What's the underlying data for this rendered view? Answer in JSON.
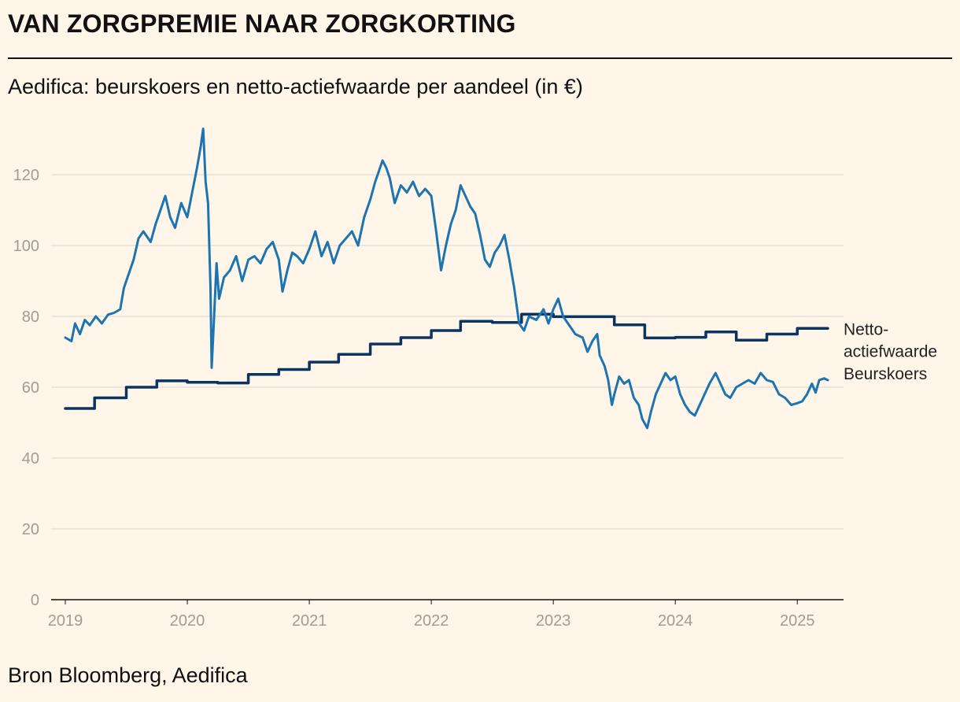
{
  "header": {
    "title": "VAN ZORGPREMIE NAAR ZORGKORTING",
    "subtitle": "Aedifica: beurskoers en netto-actiefwaarde per aandeel (in €)"
  },
  "footer": {
    "source": "Bron Bloomberg, Aedifica"
  },
  "colors": {
    "background": "#fff6e9",
    "nav_line": "#0b3461",
    "price_line": "#1c74b0",
    "grid": "#e3ddd2"
  },
  "chart_data": {
    "type": "line",
    "title": "Aedifica: beurskoers en netto-actiefwaarde per aandeel (in €)",
    "xlabel": "",
    "ylabel": "",
    "xlim": [
      2019.0,
      2025.25
    ],
    "ylim": [
      0,
      130
    ],
    "yticks": [
      0,
      20,
      40,
      60,
      80,
      100,
      120
    ],
    "xticks": [
      {
        "value": 2019,
        "label": "2019"
      },
      {
        "value": 2020,
        "label": "2020"
      },
      {
        "value": 2021,
        "label": "2021"
      },
      {
        "value": 2022,
        "label": "2022"
      },
      {
        "value": 2023,
        "label": "2023"
      },
      {
        "value": 2024,
        "label": "2024"
      },
      {
        "value": 2025,
        "label": "2025"
      }
    ],
    "grid": true,
    "series": [
      {
        "name": "Netto-actiefwaarde",
        "label_lines": [
          "Netto-",
          "actiefwaarde"
        ],
        "style": "step",
        "points": [
          [
            2019.0,
            54.0
          ],
          [
            2019.24,
            54.0
          ],
          [
            2019.24,
            57.0
          ],
          [
            2019.5,
            57.0
          ],
          [
            2019.5,
            60.0
          ],
          [
            2019.75,
            60.0
          ],
          [
            2019.75,
            61.8
          ],
          [
            2020.0,
            61.8
          ],
          [
            2020.0,
            61.4
          ],
          [
            2020.25,
            61.4
          ],
          [
            2020.25,
            61.2
          ],
          [
            2020.5,
            61.2
          ],
          [
            2020.5,
            63.6
          ],
          [
            2020.75,
            63.6
          ],
          [
            2020.75,
            65.0
          ],
          [
            2021.0,
            65.0
          ],
          [
            2021.0,
            67.1
          ],
          [
            2021.24,
            67.1
          ],
          [
            2021.24,
            69.3
          ],
          [
            2021.5,
            69.3
          ],
          [
            2021.5,
            72.2
          ],
          [
            2021.75,
            72.2
          ],
          [
            2021.75,
            74.0
          ],
          [
            2022.0,
            74.0
          ],
          [
            2022.0,
            76.0
          ],
          [
            2022.24,
            76.0
          ],
          [
            2022.24,
            78.6
          ],
          [
            2022.5,
            78.6
          ],
          [
            2022.5,
            78.3
          ],
          [
            2022.74,
            78.3
          ],
          [
            2022.74,
            80.6
          ],
          [
            2023.0,
            80.6
          ],
          [
            2023.0,
            79.9
          ],
          [
            2023.5,
            79.9
          ],
          [
            2023.5,
            77.6
          ],
          [
            2023.75,
            77.6
          ],
          [
            2023.75,
            73.9
          ],
          [
            2024.0,
            73.9
          ],
          [
            2024.0,
            74.1
          ],
          [
            2024.25,
            74.1
          ],
          [
            2024.25,
            75.6
          ],
          [
            2024.5,
            75.6
          ],
          [
            2024.5,
            73.3
          ],
          [
            2024.75,
            73.3
          ],
          [
            2024.75,
            75.0
          ],
          [
            2025.0,
            75.0
          ],
          [
            2025.0,
            76.6
          ],
          [
            2025.25,
            76.6
          ]
        ]
      },
      {
        "name": "Beurskoers",
        "label_lines": [
          "Beurskoers"
        ],
        "style": "line",
        "points": [
          [
            2019.0,
            74.0
          ],
          [
            2019.05,
            73.0
          ],
          [
            2019.08,
            78.0
          ],
          [
            2019.12,
            75.0
          ],
          [
            2019.16,
            79.0
          ],
          [
            2019.2,
            77.5
          ],
          [
            2019.25,
            80.0
          ],
          [
            2019.3,
            78.0
          ],
          [
            2019.35,
            80.5
          ],
          [
            2019.4,
            81.0
          ],
          [
            2019.45,
            82.0
          ],
          [
            2019.48,
            88.0
          ],
          [
            2019.52,
            92.0
          ],
          [
            2019.56,
            96.0
          ],
          [
            2019.6,
            102.0
          ],
          [
            2019.64,
            104.0
          ],
          [
            2019.7,
            101.0
          ],
          [
            2019.74,
            106.0
          ],
          [
            2019.78,
            110.0
          ],
          [
            2019.82,
            114.0
          ],
          [
            2019.86,
            108.0
          ],
          [
            2019.9,
            105.0
          ],
          [
            2019.95,
            112.0
          ],
          [
            2020.0,
            108.0
          ],
          [
            2020.04,
            115.0
          ],
          [
            2020.08,
            122.0
          ],
          [
            2020.11,
            128.0
          ],
          [
            2020.13,
            133.0
          ],
          [
            2020.15,
            118.0
          ],
          [
            2020.17,
            112.0
          ],
          [
            2020.19,
            88.0
          ],
          [
            2020.2,
            65.5
          ],
          [
            2020.22,
            80.0
          ],
          [
            2020.24,
            95.0
          ],
          [
            2020.26,
            85.0
          ],
          [
            2020.3,
            91.0
          ],
          [
            2020.35,
            93.0
          ],
          [
            2020.4,
            97.0
          ],
          [
            2020.45,
            90.0
          ],
          [
            2020.5,
            96.0
          ],
          [
            2020.55,
            97.0
          ],
          [
            2020.6,
            95.0
          ],
          [
            2020.65,
            99.0
          ],
          [
            2020.7,
            101.0
          ],
          [
            2020.75,
            96.0
          ],
          [
            2020.78,
            87.0
          ],
          [
            2020.82,
            93.0
          ],
          [
            2020.86,
            98.0
          ],
          [
            2020.9,
            97.0
          ],
          [
            2020.95,
            95.0
          ],
          [
            2021.0,
            99.0
          ],
          [
            2021.05,
            104.0
          ],
          [
            2021.1,
            97.0
          ],
          [
            2021.15,
            101.0
          ],
          [
            2021.2,
            95.0
          ],
          [
            2021.25,
            100.0
          ],
          [
            2021.3,
            102.0
          ],
          [
            2021.35,
            104.0
          ],
          [
            2021.4,
            100.0
          ],
          [
            2021.45,
            108.0
          ],
          [
            2021.5,
            113.0
          ],
          [
            2021.54,
            118.0
          ],
          [
            2021.57,
            121.0
          ],
          [
            2021.6,
            124.0
          ],
          [
            2021.63,
            122.0
          ],
          [
            2021.66,
            119.0
          ],
          [
            2021.7,
            112.0
          ],
          [
            2021.75,
            117.0
          ],
          [
            2021.8,
            115.0
          ],
          [
            2021.85,
            118.0
          ],
          [
            2021.9,
            114.0
          ],
          [
            2021.95,
            116.0
          ],
          [
            2022.0,
            114.0
          ],
          [
            2022.04,
            104.0
          ],
          [
            2022.08,
            93.0
          ],
          [
            2022.12,
            100.0
          ],
          [
            2022.16,
            106.0
          ],
          [
            2022.2,
            110.0
          ],
          [
            2022.24,
            117.0
          ],
          [
            2022.28,
            114.0
          ],
          [
            2022.32,
            111.0
          ],
          [
            2022.36,
            109.0
          ],
          [
            2022.4,
            103.0
          ],
          [
            2022.44,
            96.0
          ],
          [
            2022.48,
            94.0
          ],
          [
            2022.52,
            98.0
          ],
          [
            2022.56,
            100.0
          ],
          [
            2022.6,
            103.0
          ],
          [
            2022.64,
            96.0
          ],
          [
            2022.68,
            88.0
          ],
          [
            2022.72,
            78.0
          ],
          [
            2022.76,
            76.0
          ],
          [
            2022.8,
            80.0
          ],
          [
            2022.86,
            79.0
          ],
          [
            2022.92,
            82.0
          ],
          [
            2022.96,
            78.0
          ],
          [
            2023.0,
            82.0
          ],
          [
            2023.04,
            85.0
          ],
          [
            2023.08,
            80.0
          ],
          [
            2023.12,
            78.0
          ],
          [
            2023.18,
            75.0
          ],
          [
            2023.24,
            74.0
          ],
          [
            2023.28,
            70.0
          ],
          [
            2023.32,
            73.0
          ],
          [
            2023.36,
            75.0
          ],
          [
            2023.38,
            69.0
          ],
          [
            2023.42,
            66.0
          ],
          [
            2023.45,
            62.0
          ],
          [
            2023.48,
            55.0
          ],
          [
            2023.5,
            58.0
          ],
          [
            2023.54,
            63.0
          ],
          [
            2023.58,
            61.0
          ],
          [
            2023.62,
            62.0
          ],
          [
            2023.66,
            57.0
          ],
          [
            2023.7,
            55.0
          ],
          [
            2023.73,
            51.0
          ],
          [
            2023.77,
            48.5
          ],
          [
            2023.8,
            53.0
          ],
          [
            2023.84,
            58.0
          ],
          [
            2023.88,
            61.0
          ],
          [
            2023.92,
            64.0
          ],
          [
            2023.96,
            62.0
          ],
          [
            2024.0,
            63.0
          ],
          [
            2024.04,
            58.0
          ],
          [
            2024.08,
            55.0
          ],
          [
            2024.12,
            53.0
          ],
          [
            2024.16,
            52.0
          ],
          [
            2024.2,
            55.0
          ],
          [
            2024.24,
            58.0
          ],
          [
            2024.28,
            61.0
          ],
          [
            2024.33,
            64.0
          ],
          [
            2024.37,
            61.0
          ],
          [
            2024.41,
            58.0
          ],
          [
            2024.45,
            57.0
          ],
          [
            2024.5,
            60.0
          ],
          [
            2024.55,
            61.0
          ],
          [
            2024.6,
            62.0
          ],
          [
            2024.65,
            61.0
          ],
          [
            2024.7,
            64.0
          ],
          [
            2024.75,
            62.0
          ],
          [
            2024.8,
            61.5
          ],
          [
            2024.85,
            58.0
          ],
          [
            2024.9,
            57.0
          ],
          [
            2024.95,
            55.0
          ],
          [
            2025.0,
            55.5
          ],
          [
            2025.04,
            56.0
          ],
          [
            2025.08,
            58.0
          ],
          [
            2025.12,
            61.0
          ],
          [
            2025.15,
            58.5
          ],
          [
            2025.18,
            62.0
          ],
          [
            2025.22,
            62.5
          ],
          [
            2025.25,
            62.0
          ]
        ]
      }
    ]
  }
}
